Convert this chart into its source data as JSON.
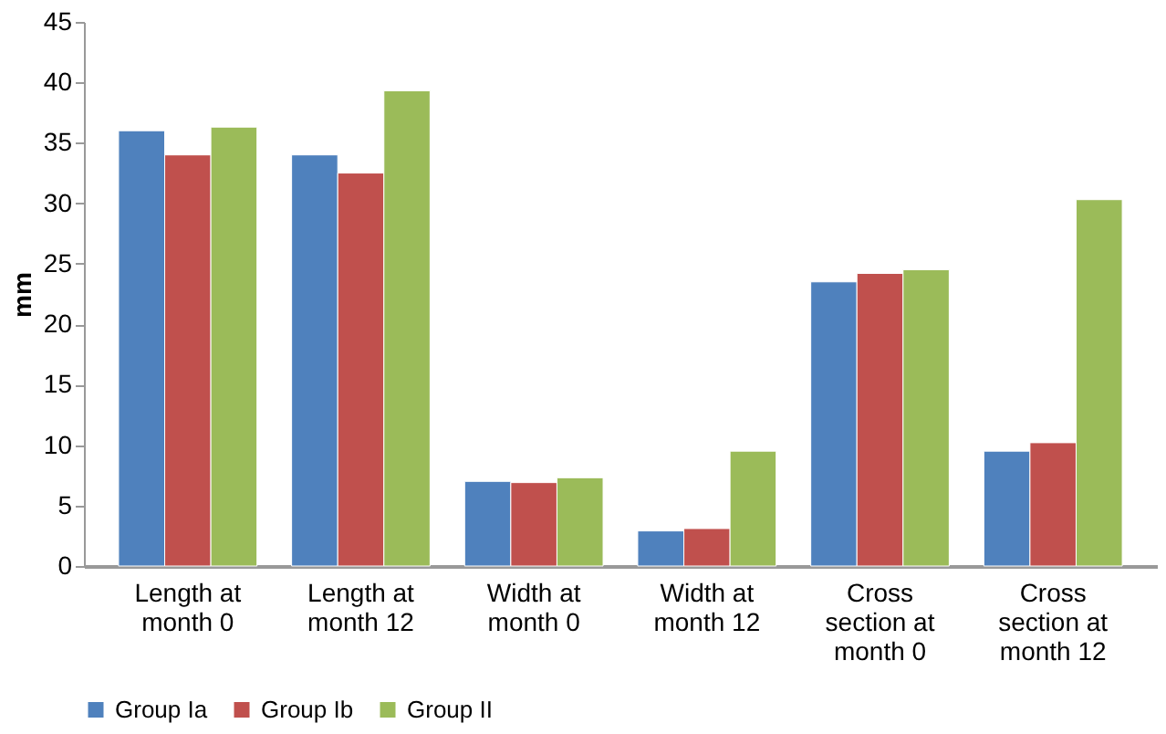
{
  "chart_data": {
    "type": "bar",
    "ylabel": "mm",
    "categories": [
      "Length at\nmonth 0",
      "Length at\nmonth 12",
      "Width at\nmonth 0",
      "Width at\nmonth 12",
      "Cross\nsection at\nmonth 0",
      "Cross\nsection at\nmonth 12"
    ],
    "series": [
      {
        "name": "Group Ia",
        "color": "#4f81bd",
        "values": [
          36,
          34,
          7,
          2.9,
          23.5,
          9.5
        ]
      },
      {
        "name": "Group Ib",
        "color": "#c0504d",
        "values": [
          34,
          32.5,
          6.9,
          3.1,
          24.2,
          10.2
        ]
      },
      {
        "name": "Group II",
        "color": "#9bbb59",
        "values": [
          36.3,
          39.3,
          7.3,
          9.5,
          24.5,
          30.3
        ]
      }
    ],
    "ylim": [
      0,
      45
    ],
    "yticks": [
      0,
      5,
      10,
      15,
      20,
      25,
      30,
      35,
      40,
      45
    ],
    "grid": false,
    "legend": "bottom"
  }
}
